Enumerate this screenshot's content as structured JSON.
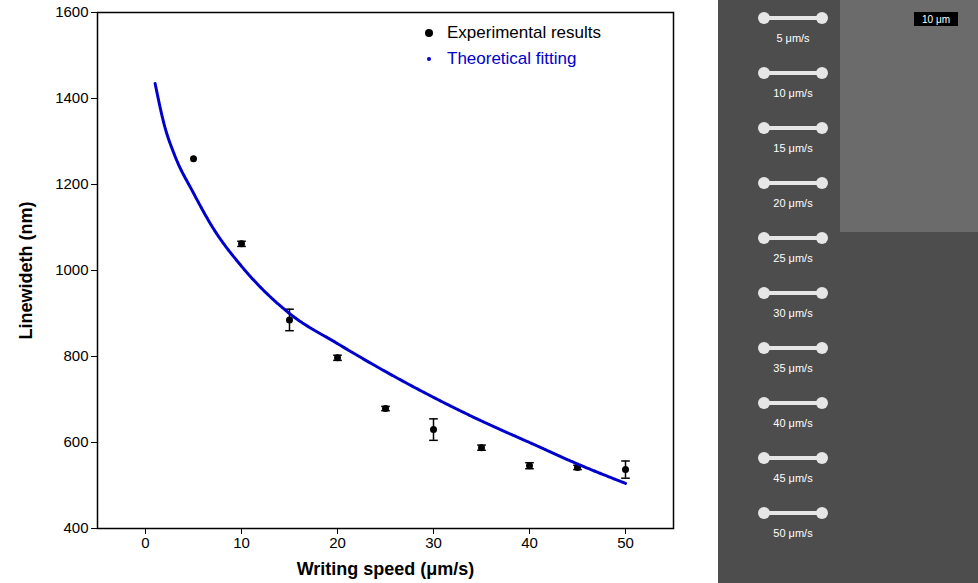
{
  "chart_data": {
    "type": "scatter",
    "x_label": "Writing speed (μm/s)",
    "y_label": "Linewideth (nm)",
    "xlim": [
      -5,
      55
    ],
    "ylim": [
      400,
      1600
    ],
    "xticks": [
      0,
      10,
      20,
      30,
      40,
      50
    ],
    "yticks": [
      400,
      600,
      800,
      1000,
      1200,
      1400,
      1600
    ],
    "legend": "upper right",
    "series": [
      {
        "name": "Experimental results",
        "type": "scatter",
        "color": "#000000",
        "marker": "circle",
        "x": [
          5,
          10,
          15,
          20,
          25,
          30,
          35,
          40,
          45,
          50
        ],
        "values": [
          1260,
          1062,
          885,
          797,
          679,
          630,
          588,
          546,
          542,
          537
        ],
        "errors": [
          null,
          6,
          25,
          6,
          5,
          25,
          6,
          7,
          5,
          20
        ]
      },
      {
        "name": "Theoretical fitting",
        "type": "line",
        "color": "#0000cc",
        "line_style": "dotted",
        "x": [
          1,
          2,
          3,
          5,
          7,
          10,
          15,
          20,
          25,
          30,
          35,
          40,
          45,
          50
        ],
        "values": [
          1435,
          1335,
          1270,
          1180,
          1100,
          1010,
          900,
          830,
          765,
          705,
          650,
          600,
          550,
          505
        ]
      }
    ],
    "inset": {
      "labels": [
        "5 μm/s",
        "10 μm/s",
        "15 μm/s",
        "20 μm/s",
        "25 μm/s",
        "30 μm/s",
        "35 μm/s",
        "40 μm/s",
        "45 μm/s",
        "50 μm/s"
      ],
      "scale_bar": "10 μm"
    }
  }
}
